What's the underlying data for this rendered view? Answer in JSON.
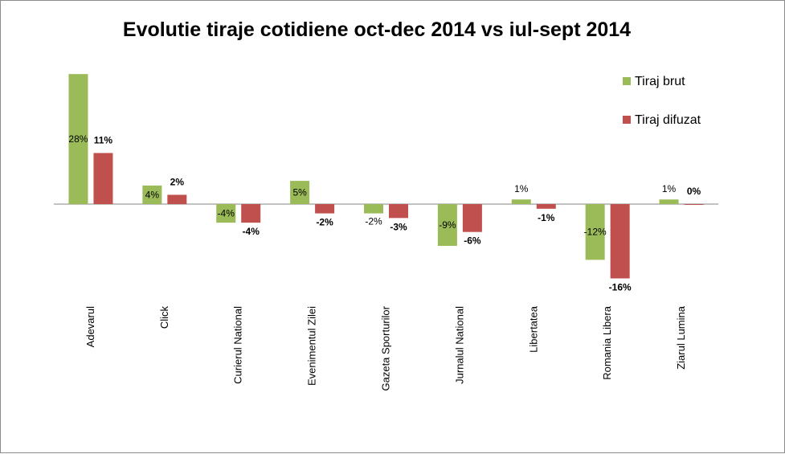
{
  "chart_data": {
    "type": "bar",
    "title": "Evolutie tiraje cotidiene oct-dec 2014 vs iul-sept 2014",
    "xlabel": "",
    "ylabel": "",
    "grid": false,
    "legend_position": "top-right",
    "categories": [
      "Adevarul",
      "Click",
      "Curierul National",
      "Evenimentul Zilei",
      "Gazeta Sporturilor",
      "Jurnalul National",
      "Libertatea",
      "Romania Libera",
      "Ziarul Lumina"
    ],
    "series": [
      {
        "name": "Tiraj brut",
        "color": "#9bbb59",
        "values": [
          28,
          4,
          -4,
          5,
          -2,
          -9,
          1,
          -12,
          1
        ],
        "labels": [
          "28%",
          "4%",
          "-4%",
          "5%",
          "-2%",
          "-9%",
          "1%",
          "-12%",
          "1%"
        ]
      },
      {
        "name": "Tiraj difuzat",
        "color": "#c0504d",
        "values": [
          11,
          2,
          -4,
          -2,
          -3,
          -6,
          -1,
          -16,
          0
        ],
        "labels": [
          "11%",
          "2%",
          "-4%",
          "-2%",
          "-3%",
          "-6%",
          "-1%",
          "-16%",
          "0%"
        ]
      }
    ],
    "ylim": [
      -18,
      30
    ]
  }
}
